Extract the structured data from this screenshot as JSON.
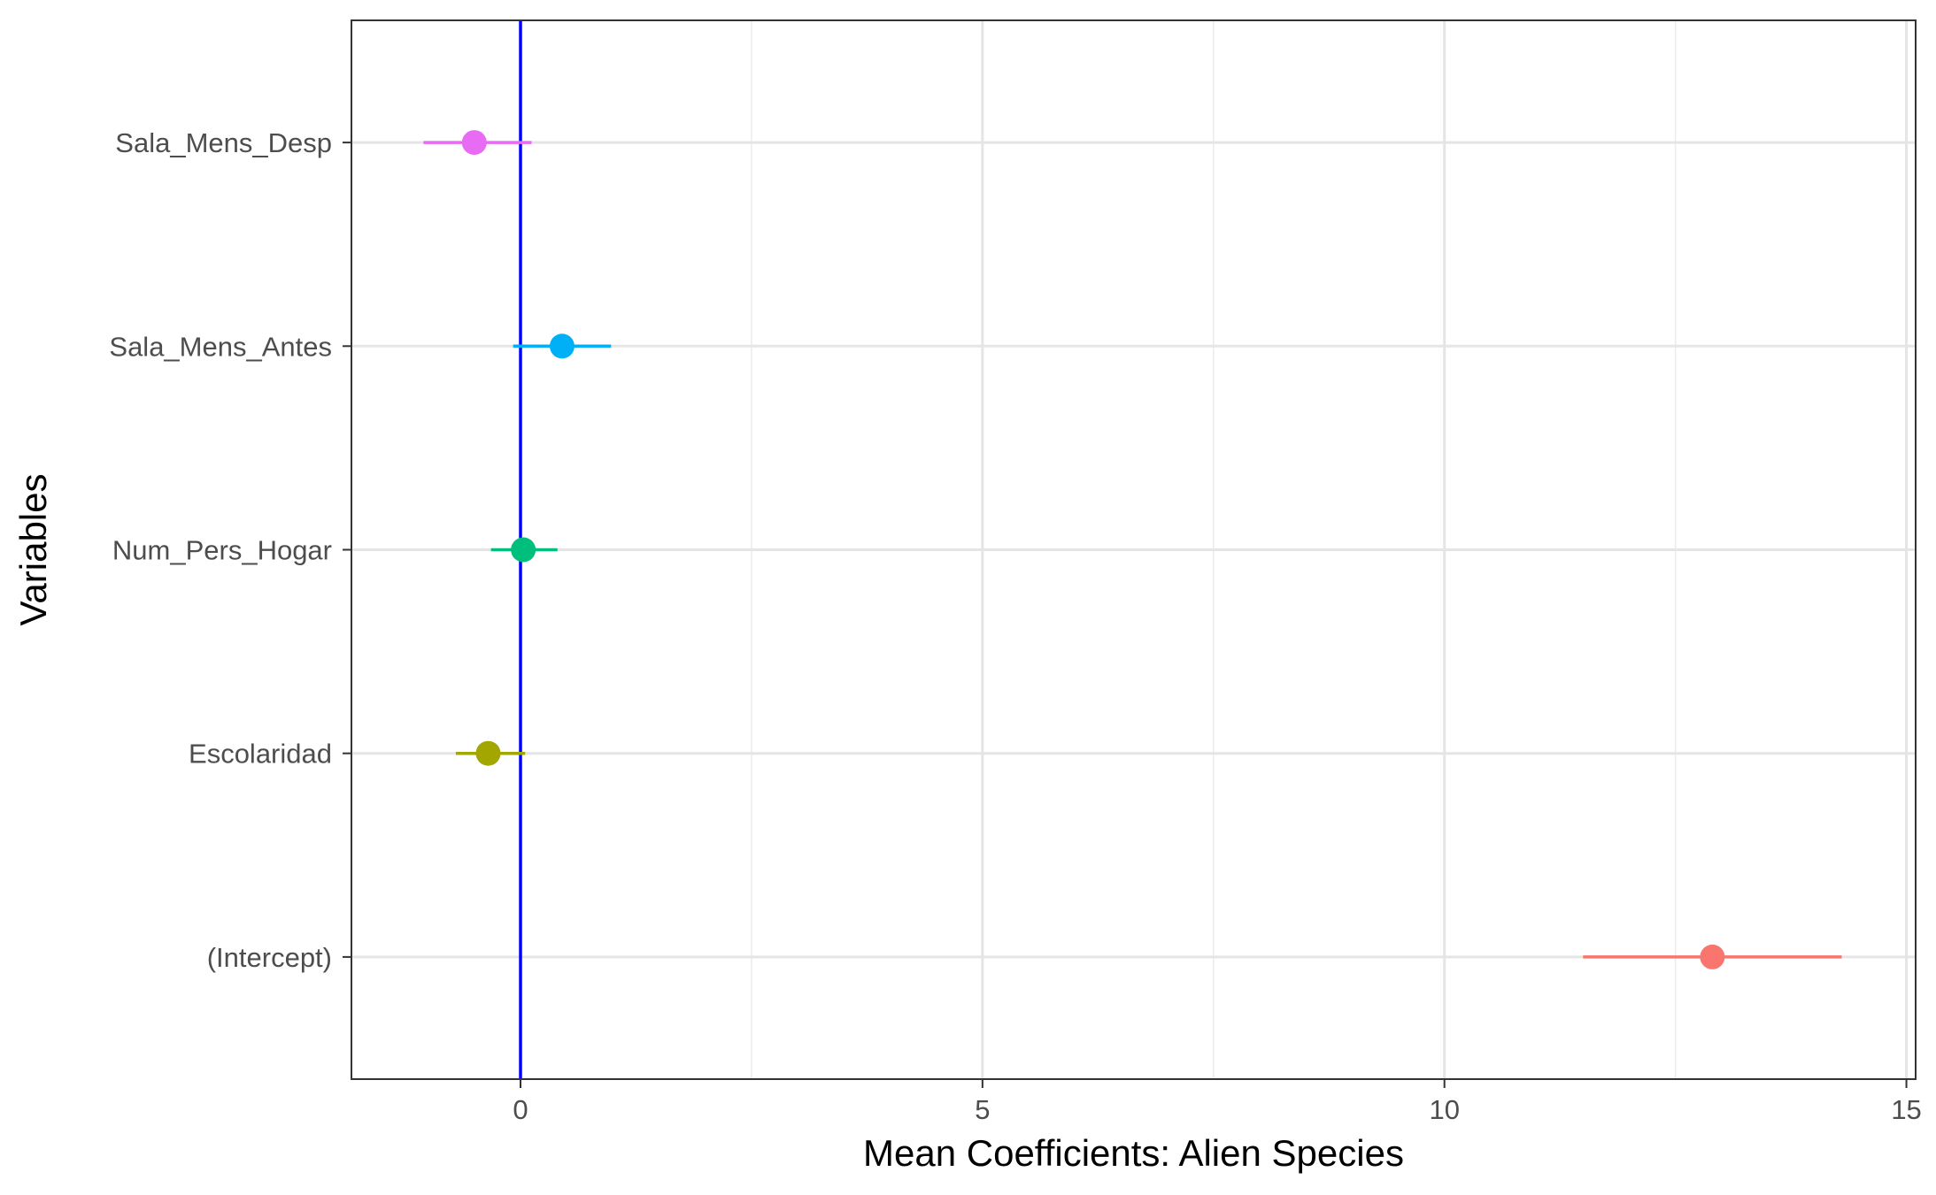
{
  "chart_data": {
    "type": "scatter",
    "subtype": "coefficient-plot-with-error-bars",
    "title": "",
    "xlabel": "Mean Coefficients: Alien Species",
    "ylabel": "Variables",
    "xlim": [
      -1.83,
      15.1
    ],
    "x_ticks": [
      {
        "value": 0,
        "label": "0"
      },
      {
        "value": 5,
        "label": "5"
      },
      {
        "value": 10,
        "label": "10"
      },
      {
        "value": 15,
        "label": "15"
      }
    ],
    "x_minor_gridlines": [
      2.5,
      7.5,
      12.5
    ],
    "categories": [
      "(Intercept)",
      "Escolaridad",
      "Num_Pers_Hogar",
      "Sala_Mens_Antes",
      "Sala_Mens_Desp"
    ],
    "points": [
      {
        "variable": "(Intercept)",
        "mean": 12.9,
        "lower": 11.5,
        "upper": 14.3,
        "color": "#F8766D"
      },
      {
        "variable": "Escolaridad",
        "mean": -0.35,
        "lower": -0.7,
        "upper": 0.05,
        "color": "#A3A500"
      },
      {
        "variable": "Num_Pers_Hogar",
        "mean": 0.03,
        "lower": -0.32,
        "upper": 0.4,
        "color": "#00BF7D"
      },
      {
        "variable": "Sala_Mens_Antes",
        "mean": 0.45,
        "lower": -0.08,
        "upper": 0.98,
        "color": "#00B0F6"
      },
      {
        "variable": "Sala_Mens_Desp",
        "mean": -0.5,
        "lower": -1.05,
        "upper": 0.12,
        "color": "#E76BF3"
      }
    ],
    "reference_line": {
      "x": 0,
      "color": "#0000FF"
    },
    "grid": true,
    "legend": "none"
  }
}
